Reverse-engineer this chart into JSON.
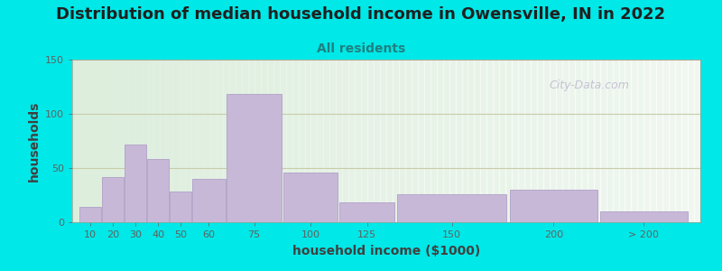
{
  "title": "Distribution of median household income in Owensville, IN in 2022",
  "subtitle": "All residents",
  "xlabel": "household income ($1000)",
  "ylabel": "households",
  "bar_labels": [
    "10",
    "20",
    "30",
    "40",
    "50",
    "60",
    "75",
    "100",
    "125",
    "150",
    "200",
    "> 200"
  ],
  "bar_values": [
    14,
    42,
    72,
    58,
    28,
    40,
    118,
    46,
    18,
    26,
    30,
    10
  ],
  "bar_color": "#c8b8d8",
  "bar_edge_color": "#b0a0c8",
  "ylim": [
    0,
    150
  ],
  "yticks": [
    0,
    50,
    100,
    150
  ],
  "background_outer": "#00e8e8",
  "background_inner": "#ddeedd",
  "grid_color": "#c8cca8",
  "title_fontsize": 13,
  "subtitle_fontsize": 10,
  "axis_label_fontsize": 10,
  "tick_fontsize": 8,
  "watermark_text": "City-Data.com",
  "watermark_color": "#c0b8d0",
  "bar_left_edges": [
    10,
    20,
    30,
    40,
    50,
    60,
    75,
    100,
    125,
    150,
    200,
    240
  ],
  "bar_widths": [
    10,
    10,
    10,
    10,
    10,
    15,
    25,
    25,
    25,
    50,
    40,
    40
  ],
  "xlim_left": 7,
  "xlim_right": 285
}
